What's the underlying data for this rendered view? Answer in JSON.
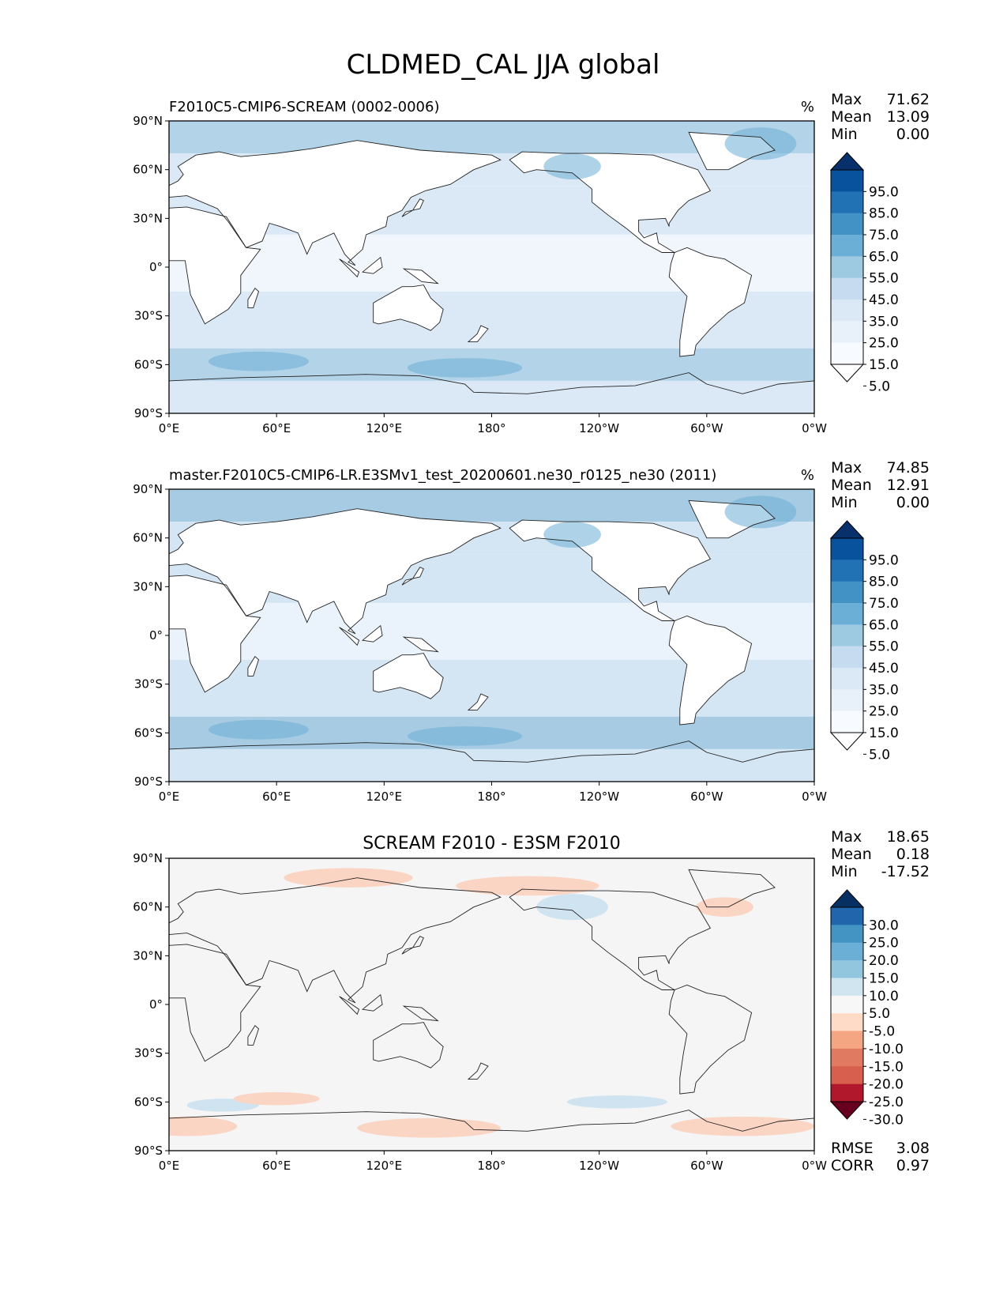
{
  "title": "CLDMED_CAL JJA global",
  "x_ticks": [
    "0°E",
    "60°E",
    "120°E",
    "180°",
    "120°W",
    "60°W",
    "0°W"
  ],
  "y_ticks": [
    "90°N",
    "60°N",
    "30°N",
    "0°",
    "30°S",
    "60°S",
    "90°S"
  ],
  "panels": [
    {
      "title": "F2010C5-CMIP6-SCREAM (0002-0006)",
      "units": "%",
      "stats": {
        "max_label": "Max",
        "max": "71.62",
        "mean_label": "Mean",
        "mean": "13.09",
        "min_label": "Min",
        "min": "0.00"
      },
      "colorbar": {
        "ticks": [
          "95.0",
          "85.0",
          "75.0",
          "65.0",
          "55.0",
          "45.0",
          "35.0",
          "25.0",
          "15.0",
          "5.0"
        ],
        "colors": [
          "#08306b",
          "#08519c",
          "#2171b5",
          "#4292c6",
          "#6baed6",
          "#9ecae1",
          "#c6dbef",
          "#dbe9f6",
          "#e8f1fa",
          "#f7fbff",
          "#ffffff"
        ]
      },
      "field_colors": {
        "land": "#ffffff",
        "tropics": "#f0f6fc",
        "mid": "#dbe9f6",
        "storm": "#b3d3e8",
        "peak": "#6baed6"
      }
    },
    {
      "title": "master.F2010C5-CMIP6-LR.E3SMv1_test_20200601.ne30_r0125_ne30 (2011)",
      "units": "%",
      "stats": {
        "max_label": "Max",
        "max": "74.85",
        "mean_label": "Mean",
        "mean": "12.91",
        "min_label": "Min",
        "min": "0.00"
      },
      "colorbar": {
        "ticks": [
          "95.0",
          "85.0",
          "75.0",
          "65.0",
          "55.0",
          "45.0",
          "35.0",
          "25.0",
          "15.0",
          "5.0"
        ],
        "colors": [
          "#08306b",
          "#08519c",
          "#2171b5",
          "#4292c6",
          "#6baed6",
          "#9ecae1",
          "#c6dbef",
          "#dbe9f6",
          "#e8f1fa",
          "#f7fbff",
          "#ffffff"
        ]
      },
      "field_colors": {
        "land": "#ffffff",
        "tropics": "#eaf2fb",
        "mid": "#d4e5f4",
        "storm": "#a6cbe3",
        "peak": "#6baed6"
      }
    },
    {
      "title": "SCREAM F2010 - E3SM F2010",
      "units": "",
      "stats": {
        "max_label": "Max",
        "max": "18.65",
        "mean_label": "Mean",
        "mean": "0.18",
        "min_label": "Min",
        "min": "-17.52"
      },
      "extra_stats": {
        "rmse_label": "RMSE",
        "rmse": "3.08",
        "corr_label": "CORR",
        "corr": "0.97"
      },
      "colorbar": {
        "ticks": [
          "30.0",
          "25.0",
          "20.0",
          "15.0",
          "10.0",
          "5.0",
          "-5.0",
          "-10.0",
          "-15.0",
          "-20.0",
          "-25.0",
          "-30.0"
        ],
        "colors": [
          "#053061",
          "#2166ac",
          "#4393c3",
          "#6baed6",
          "#92c5de",
          "#d1e5f0",
          "#f7f7f7",
          "#fddbc7",
          "#f4a582",
          "#e07b62",
          "#d6604d",
          "#b2182b",
          "#67001f"
        ]
      },
      "field_colors": {
        "background": "#f5f5f5",
        "positive": "#cfe3f0",
        "negative": "#fbd5c4"
      }
    }
  ]
}
